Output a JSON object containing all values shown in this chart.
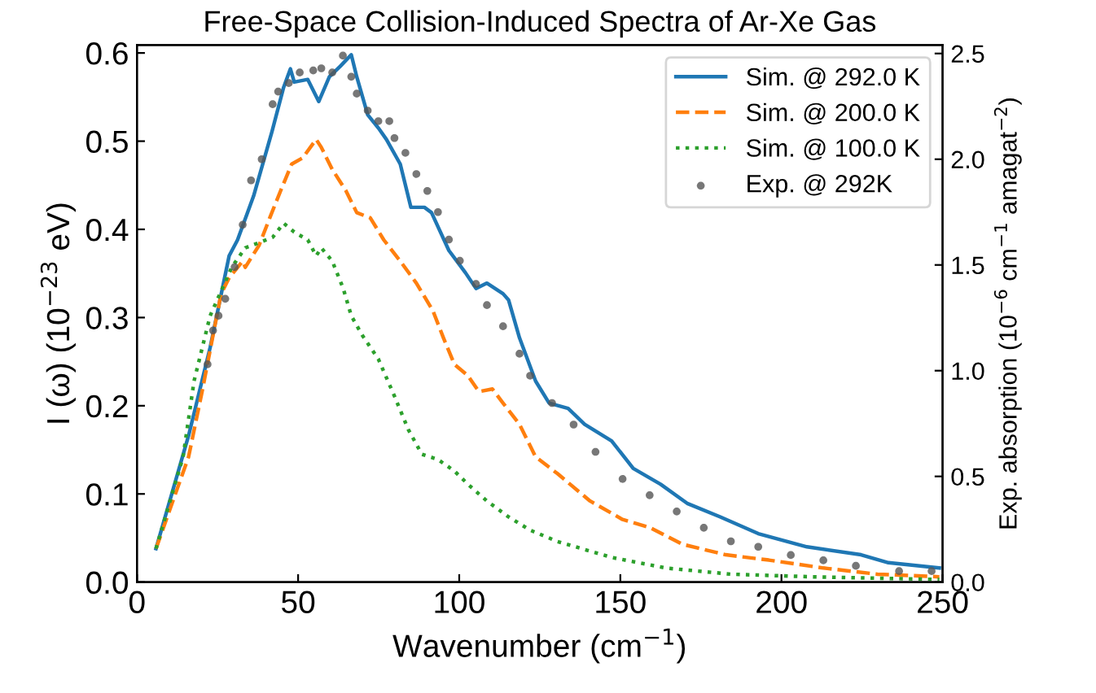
{
  "chart_data": {
    "type": "line",
    "title": "Free-Space Collision-Induced Spectra of Ar-Xe Gas",
    "xlabel": "Wavenumber (cm$^{−1}$)",
    "ylabel": "I (ω) (10$^{−23}$ eV)",
    "y2label": "Exp. absorption (10$^{−6}$ cm$^{−1}$ amagat$^{−2}$)",
    "xlim": [
      0,
      250
    ],
    "xticks": [
      0,
      50,
      100,
      150,
      200,
      250
    ],
    "ylim": [
      0,
      0.609
    ],
    "yticks": [
      {
        "value": 0,
        "label": "0.0"
      },
      0.1,
      0.2,
      0.3,
      0.4,
      0.5,
      0.6
    ],
    "y2lim": [
      0,
      2.54
    ],
    "y2ticks": [
      {
        "value": 0,
        "label": "0.0"
      },
      0.5,
      {
        "value": 1,
        "label": "1.0"
      },
      1.5,
      {
        "value": 2,
        "label": "2.0"
      },
      2.5
    ],
    "grid": false,
    "legend": "top right",
    "series": [
      {
        "name": "Sim. @ 292.0 K",
        "color": "#1f77b4",
        "line_style": "solid",
        "x": [
          5.9,
          16,
          22.7,
          28.6,
          31.2,
          36.2,
          41.9,
          45.5,
          47.6,
          48.8,
          53,
          56.4,
          59.7,
          63.1,
          66.5,
          68.2,
          71.6,
          74.9,
          77.4,
          81.7,
          85,
          89.2,
          91.4,
          96.8,
          101.9,
          105.2,
          108.6,
          113.6,
          115.3,
          118.7,
          123.7,
          127.9,
          133.8,
          138.9,
          147.3,
          154,
          162.5,
          170.9,
          181,
          192.8,
          207.9,
          224.7,
          233.2,
          249
        ],
        "values": [
          0.038,
          0.166,
          0.266,
          0.37,
          0.388,
          0.438,
          0.511,
          0.561,
          0.582,
          0.567,
          0.57,
          0.545,
          0.573,
          0.585,
          0.598,
          0.573,
          0.53,
          0.515,
          0.502,
          0.474,
          0.425,
          0.425,
          0.419,
          0.376,
          0.351,
          0.333,
          0.339,
          0.327,
          0.32,
          0.277,
          0.228,
          0.203,
          0.197,
          0.179,
          0.16,
          0.129,
          0.111,
          0.089,
          0.074,
          0.055,
          0.04,
          0.031,
          0.022,
          0.016
        ]
      },
      {
        "name": "Sim. @ 200.0 K",
        "color": "#ff7f0e",
        "line_style": "dashed",
        "x": [
          5.9,
          16,
          20.2,
          26.1,
          28.6,
          32.8,
          33.6,
          37.9,
          41.2,
          44.6,
          48,
          51.4,
          55.6,
          57.2,
          60.6,
          64.8,
          68.2,
          72.4,
          76.6,
          81.7,
          86.7,
          91.8,
          95.1,
          98.5,
          102.7,
          106.1,
          110.3,
          113.6,
          118.7,
          123.7,
          130.5,
          140.6,
          150.7,
          159.1,
          169.2,
          182.7,
          196.1,
          213,
          229.8,
          249
        ],
        "values": [
          0.038,
          0.142,
          0.216,
          0.327,
          0.345,
          0.364,
          0.357,
          0.382,
          0.413,
          0.444,
          0.474,
          0.481,
          0.502,
          0.493,
          0.468,
          0.444,
          0.419,
          0.413,
          0.388,
          0.364,
          0.339,
          0.308,
          0.277,
          0.247,
          0.234,
          0.216,
          0.219,
          0.203,
          0.179,
          0.142,
          0.123,
          0.092,
          0.071,
          0.062,
          0.043,
          0.031,
          0.025,
          0.016,
          0.009,
          0.006
        ]
      },
      {
        "name": "Sim. @ 100.0 K",
        "color": "#2ca02c",
        "line_style": "dotted",
        "x": [
          5.9,
          14.3,
          17.7,
          22.7,
          29.4,
          33.6,
          37.9,
          42.1,
          45.5,
          48.8,
          53,
          55.6,
          57.2,
          60.6,
          64,
          66.5,
          69.9,
          74.9,
          80,
          84.2,
          88.4,
          93.4,
          98.5,
          102.7,
          108.6,
          115.3,
          122,
          130.5,
          147.3,
          164.1,
          184.3,
          209.6,
          249
        ],
        "values": [
          0.038,
          0.142,
          0.228,
          0.302,
          0.357,
          0.379,
          0.385,
          0.391,
          0.407,
          0.397,
          0.388,
          0.37,
          0.379,
          0.364,
          0.333,
          0.302,
          0.28,
          0.253,
          0.21,
          0.173,
          0.145,
          0.139,
          0.126,
          0.111,
          0.092,
          0.074,
          0.059,
          0.046,
          0.028,
          0.016,
          0.009,
          0.006,
          0.003
        ]
      },
      {
        "name": "Exp. @ 292K",
        "type": "scatter",
        "axis": "y2",
        "color": "#555555",
        "marker": "circle",
        "x": [
          21.9,
          23.6,
          25.3,
          27.4,
          30.3,
          32.8,
          35.4,
          38.7,
          42.1,
          43.8,
          47.1,
          50.5,
          54.7,
          57.2,
          60.6,
          63.9,
          66.5,
          68.2,
          71.6,
          74.9,
          78.3,
          79.9,
          83.3,
          86.7,
          90.1,
          93.4,
          96.8,
          100.2,
          105.2,
          108.6,
          113.6,
          118.7,
          122,
          128.8,
          135.5,
          142.3,
          150.7,
          159.1,
          167.5,
          175.9,
          184.3,
          192.8,
          202.9,
          213,
          223.1,
          236.5,
          246.6
        ],
        "values": [
          1.03,
          1.19,
          1.26,
          1.34,
          1.49,
          1.69,
          1.9,
          2.0,
          2.26,
          2.32,
          2.36,
          2.41,
          2.42,
          2.43,
          2.41,
          2.49,
          2.39,
          2.31,
          2.23,
          2.18,
          2.18,
          2.1,
          2.03,
          1.93,
          1.85,
          1.75,
          1.62,
          1.52,
          1.41,
          1.31,
          1.21,
          1.08,
          0.976,
          0.847,
          0.745,
          0.616,
          0.488,
          0.411,
          0.334,
          0.257,
          0.193,
          0.167,
          0.128,
          0.103,
          0.077,
          0.052,
          0.052
        ]
      }
    ]
  }
}
